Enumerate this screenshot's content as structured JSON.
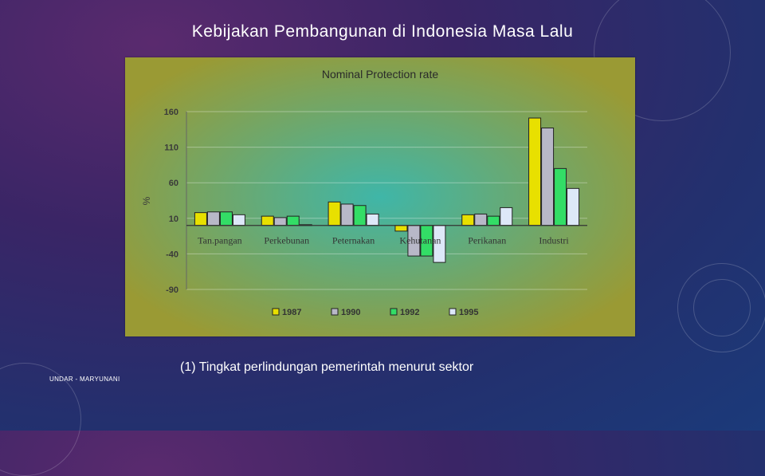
{
  "slide": {
    "title": "Kebijakan Pembangunan di Indonesia   Masa Lalu",
    "caption": "(1)  Tingkat perlindungan pemerintah  menurut sektor",
    "footer": "UNDAR - MARYUNANI"
  },
  "colors": {
    "panel_outer": "#9a9a34",
    "panel_inner": "#3fb6a8",
    "axis_text": "#3a3a3a",
    "series": [
      "#e8e000",
      "#b8b8c8",
      "#33dd66",
      "#dde8f8"
    ]
  },
  "chart_data": {
    "type": "bar",
    "title": "Nominal Protection rate",
    "ylabel": "%",
    "xlabel": "",
    "ylim": [
      -90,
      160
    ],
    "yticks": [
      160,
      110,
      60,
      10,
      -40,
      -90
    ],
    "grid": true,
    "legend_position": "bottom",
    "categories": [
      "Tan.pangan",
      "Perkebunan",
      "Peternakan",
      "Kehutanan",
      "Perikanan",
      "Industri"
    ],
    "series": [
      {
        "name": "1987",
        "values": [
          18,
          13,
          33,
          -8,
          15,
          151
        ]
      },
      {
        "name": "1990",
        "values": [
          19,
          11,
          30,
          -43,
          16,
          137
        ]
      },
      {
        "name": "1992",
        "values": [
          19,
          13,
          28,
          -43,
          13,
          80
        ]
      },
      {
        "name": "1995",
        "values": [
          15,
          1,
          16,
          -52,
          25,
          52
        ]
      }
    ]
  }
}
